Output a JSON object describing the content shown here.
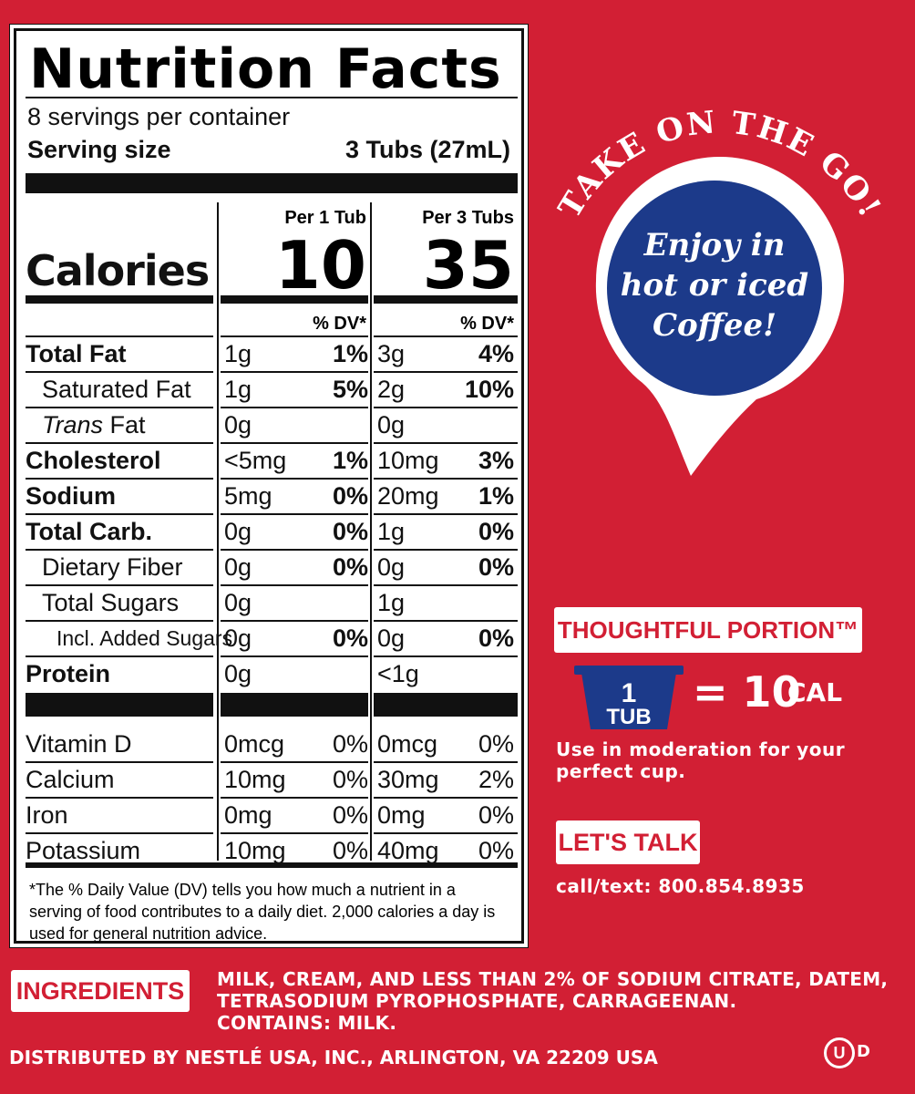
{
  "nutrition": {
    "title": "Nutrition Facts",
    "servings": "8 servings per container",
    "serving_size_label": "Serving size",
    "serving_size_value": "3 Tubs (27mL)",
    "col1_head": "Per 1 Tub",
    "col2_head": "Per 3 Tubs",
    "calories_label": "Calories",
    "cal1": "10",
    "cal2": "35",
    "dv_head": "% DV*",
    "rows": [
      {
        "label": "Total Fat",
        "a": "1g",
        "ad": "1%",
        "b": "3g",
        "bd": "4%"
      },
      {
        "label": "Saturated Fat",
        "a": "1g",
        "ad": "5%",
        "b": "2g",
        "bd": "10%"
      },
      {
        "label": "Trans",
        "label2": " Fat",
        "a": "0g",
        "ad": "",
        "b": "0g",
        "bd": ""
      },
      {
        "label": "Cholesterol",
        "a": "<5mg",
        "ad": "1%",
        "b": "10mg",
        "bd": "3%"
      },
      {
        "label": "Sodium",
        "a": "5mg",
        "ad": "0%",
        "b": "20mg",
        "bd": "1%"
      },
      {
        "label": "Total Carb.",
        "a": "0g",
        "ad": "0%",
        "b": "1g",
        "bd": "0%"
      },
      {
        "label": "Dietary Fiber",
        "a": "0g",
        "ad": "0%",
        "b": "0g",
        "bd": "0%"
      },
      {
        "label": "Total Sugars",
        "a": "0g",
        "ad": "",
        "b": "1g",
        "bd": ""
      },
      {
        "label": "Incl. Added Sugars",
        "a": "0g",
        "ad": "0%",
        "b": "0g",
        "bd": "0%"
      },
      {
        "label": "Protein",
        "a": "0g",
        "ad": "",
        "b": "<1g",
        "bd": ""
      }
    ],
    "vitamins": [
      {
        "label": "Vitamin D",
        "a": "0mcg",
        "ad": "0%",
        "b": "0mcg",
        "bd": "0%"
      },
      {
        "label": "Calcium",
        "a": "10mg",
        "ad": "0%",
        "b": "30mg",
        "bd": "2%"
      },
      {
        "label": "Iron",
        "a": "0mg",
        "ad": "0%",
        "b": "0mg",
        "bd": "0%"
      },
      {
        "label": "Potassium",
        "a": "10mg",
        "ad": "0%",
        "b": "40mg",
        "bd": "0%"
      }
    ],
    "footnote": "*The % Daily Value (DV) tells you how much a nutrient in a serving of food contributes to a daily diet. 2,000 calories a day is used for general nutrition advice."
  },
  "promo": {
    "arc_text": "TAKE ON THE GO!",
    "bubble_lines": [
      "Enjoy in",
      "hot or iced",
      "Coffee!"
    ],
    "portion_label": "THOUGHTFUL PORTION™",
    "tub_number": "1",
    "tub_word": "TUB",
    "equals": "= 10",
    "cal_unit": "CAL",
    "moderation_lines": [
      "Use in moderation for your",
      "perfect cup."
    ],
    "talk_label": "LET'S TALK",
    "contact": "call/text: 800.854.8935"
  },
  "ingredients": {
    "label": "INGREDIENTS",
    "lines": [
      "MILK, CREAM, AND LESS THAN 2% OF SODIUM CITRATE, DATEM,",
      "TETRASODIUM PYROPHOSPHATE, CARRAGEENAN."
    ],
    "contains": "CONTAINS: MILK."
  },
  "distributor": "DISTRIBUTED BY NESTLÉ USA, INC., ARLINGTON, VA 22209 USA",
  "kosher_mark": "D",
  "colors": {
    "background": "#d21f34",
    "bubble_blue": "#1c3a8a",
    "text_dark": "#111111",
    "white": "#ffffff"
  }
}
